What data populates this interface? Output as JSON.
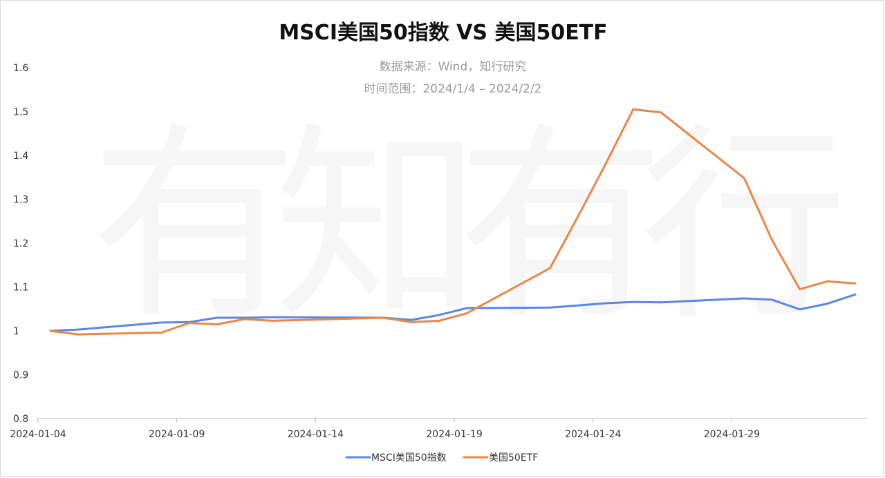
{
  "chart_data": {
    "type": "line",
    "title": "MSCI美国50指数 VS 美国50ETF",
    "subtitles": [
      "数据来源：Wind，知行研究",
      "时间范围：2024/1/4 – 2024/2/2"
    ],
    "watermark": "有知有行",
    "xlabel": "",
    "ylabel": "",
    "ylim": [
      0.8,
      1.6
    ],
    "yticks": [
      "0.8",
      "0.9",
      "1",
      "1.1",
      "1.2",
      "1.3",
      "1.4",
      "1.5",
      "1.6"
    ],
    "xticks": [
      "2024-01-04",
      "2024-01-09",
      "2024-01-14",
      "2024-01-19",
      "2024-01-24",
      "2024-01-29"
    ],
    "x": [
      "2024-01-04",
      "2024-01-05",
      "2024-01-08",
      "2024-01-09",
      "2024-01-10",
      "2024-01-11",
      "2024-01-12",
      "2024-01-16",
      "2024-01-17",
      "2024-01-18",
      "2024-01-19",
      "2024-01-22",
      "2024-01-23",
      "2024-01-24",
      "2024-01-25",
      "2024-01-26",
      "2024-01-29",
      "2024-01-30",
      "2024-01-31",
      "2024-02-01",
      "2024-02-02"
    ],
    "grid": false,
    "legend_position": "bottom",
    "series": [
      {
        "name": "MSCI美国50指数",
        "color": "#5b86e5",
        "values": [
          1.0,
          1.003,
          1.019,
          1.02,
          1.03,
          1.03,
          1.031,
          1.03,
          1.025,
          1.036,
          1.052,
          1.053,
          1.058,
          1.063,
          1.066,
          1.065,
          1.074,
          1.071,
          1.049,
          1.062,
          1.083
        ]
      },
      {
        "name": "美国50ETF",
        "color": "#ec8546",
        "values": [
          1.0,
          0.992,
          0.996,
          1.018,
          1.015,
          1.027,
          1.023,
          1.03,
          1.02,
          1.023,
          1.04,
          1.143,
          1.26,
          1.38,
          1.505,
          1.498,
          1.348,
          1.207,
          1.095,
          1.113,
          1.108
        ]
      }
    ]
  }
}
